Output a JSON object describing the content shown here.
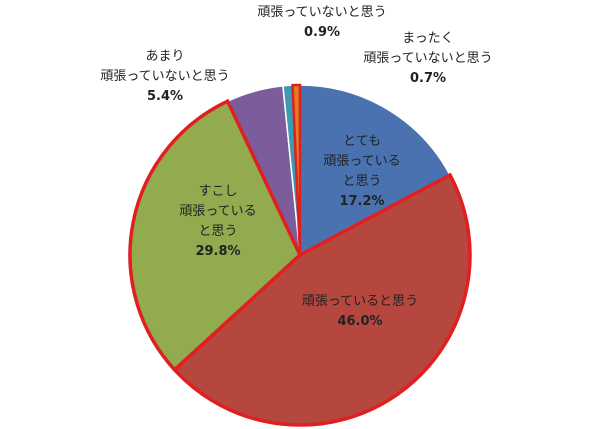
{
  "chart_data": {
    "type": "pie",
    "title": "",
    "slices": [
      {
        "name": "とても頑張っていると思う",
        "label_lines": [
          "とても",
          "頑張っている",
          "と思う"
        ],
        "value": 17.2,
        "value_label": "17.2%",
        "color": "#4a72b0"
      },
      {
        "name": "頑張っていると思う",
        "label_lines": [
          "頑張っていると思う"
        ],
        "value": 46.0,
        "value_label": "46.0%",
        "color": "#b5473f"
      },
      {
        "name": "すこし頑張っていると思う",
        "label_lines": [
          "すこし",
          "頑張っている",
          "と思う"
        ],
        "value": 29.8,
        "value_label": "29.8%",
        "color": "#93ab4f"
      },
      {
        "name": "あまり頑張っていないと思う",
        "label_lines": [
          "あまり",
          "頑張っていないと思う"
        ],
        "value": 5.4,
        "value_label": "5.4%",
        "color": "#7a5d9a"
      },
      {
        "name": "頑張っていないと思う",
        "label_lines": [
          "頑張っていないと思う"
        ],
        "value": 0.9,
        "value_label": "0.9%",
        "color": "#3a9bb2"
      },
      {
        "name": "まったく頑張っていないと思う",
        "label_lines": [
          "まったく",
          "頑張っていないと思う"
        ],
        "value": 0.7,
        "value_label": "0.7%",
        "color": "#e07a28"
      }
    ],
    "highlight_color": "#e02020"
  }
}
